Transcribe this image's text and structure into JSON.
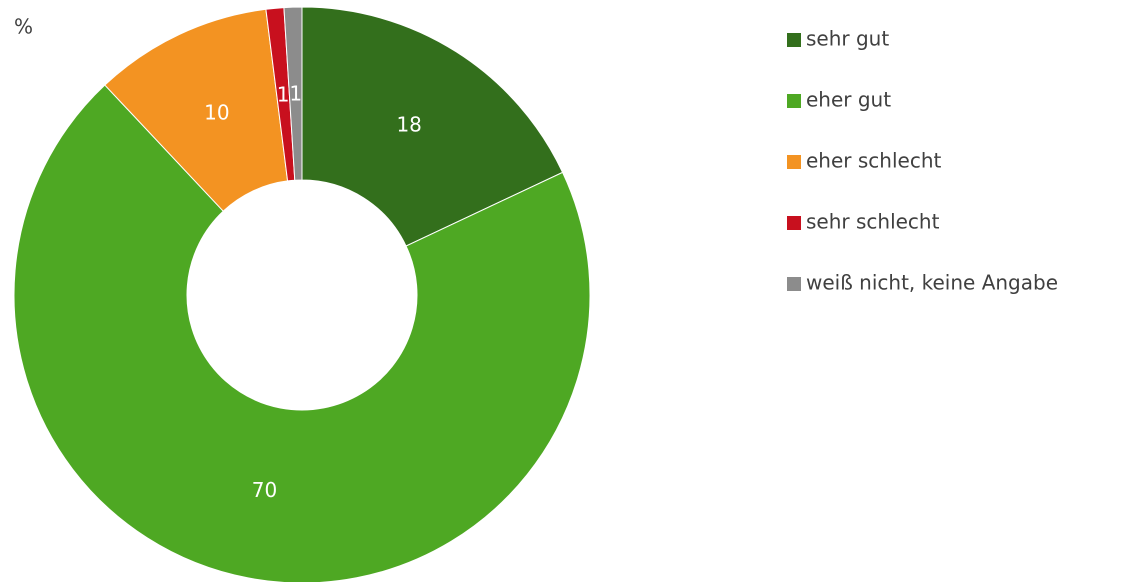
{
  "chart_data": {
    "type": "donut",
    "unit": "%",
    "categories": [
      "sehr gut",
      "eher gut",
      "eher schlecht",
      "sehr schlecht",
      "weiß nicht, keine Angabe"
    ],
    "values": [
      18,
      70,
      10,
      1,
      1
    ],
    "colors": [
      "#336f1c",
      "#4ea823",
      "#f39322",
      "#c8101e",
      "#8c8c8c"
    ],
    "legend": "right"
  }
}
